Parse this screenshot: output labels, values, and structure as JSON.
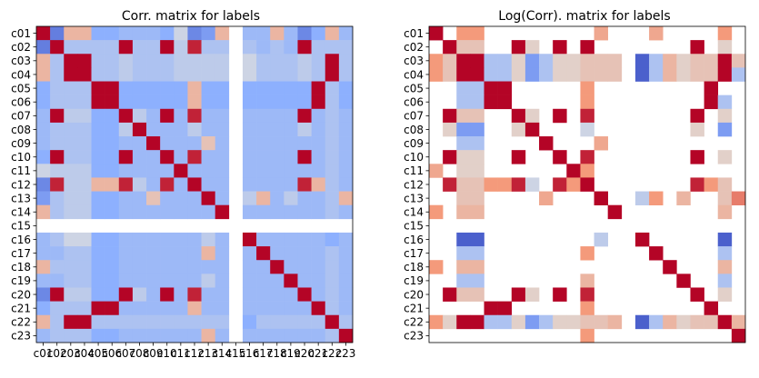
{
  "chart_data": [
    {
      "type": "heatmap",
      "title": "Corr. matrix for labels",
      "labels": [
        "c01",
        "c02",
        "c03",
        "c04",
        "c05",
        "c06",
        "c07",
        "c08",
        "c09",
        "c10",
        "c11",
        "c12",
        "c13",
        "c14",
        "c15",
        "c16",
        "c17",
        "c18",
        "c19",
        "c20",
        "c21",
        "c22",
        "c23"
      ],
      "colormap": "coolwarm",
      "value_range": [
        -1,
        1
      ],
      "blank_rows_cols": [
        "c15"
      ],
      "values": [
        [
          1.0,
          -0.75,
          0.3,
          0.3,
          -0.5,
          -0.5,
          -0.4,
          -0.4,
          -0.4,
          -0.5,
          -0.1,
          -0.7,
          -0.6,
          0.3,
          null,
          -0.4,
          -0.4,
          0.3,
          -0.4,
          -0.7,
          -0.5,
          0.3,
          -0.4
        ],
        [
          -0.75,
          1.0,
          -0.3,
          -0.3,
          -0.3,
          -0.3,
          1.0,
          -0.3,
          -0.3,
          1.0,
          -0.2,
          0.9,
          -0.3,
          -0.3,
          null,
          -0.3,
          -0.4,
          -0.3,
          -0.4,
          1.0,
          -0.3,
          -0.3,
          -0.3
        ],
        [
          0.3,
          -0.3,
          1.0,
          1.0,
          -0.3,
          -0.3,
          -0.2,
          -0.3,
          -0.3,
          -0.3,
          -0.2,
          -0.2,
          -0.2,
          -0.2,
          null,
          -0.1,
          -0.3,
          -0.3,
          -0.3,
          -0.2,
          -0.3,
          1.0,
          -0.3
        ],
        [
          0.3,
          -0.3,
          1.0,
          1.0,
          -0.3,
          -0.3,
          -0.2,
          -0.3,
          -0.3,
          -0.3,
          -0.2,
          -0.2,
          -0.2,
          -0.2,
          null,
          -0.1,
          -0.3,
          -0.3,
          -0.3,
          -0.2,
          -0.3,
          1.0,
          -0.3
        ],
        [
          -0.5,
          -0.3,
          -0.3,
          -0.3,
          1.0,
          1.0,
          -0.5,
          -0.5,
          -0.5,
          -0.5,
          -0.5,
          0.3,
          -0.5,
          -0.5,
          null,
          -0.5,
          -0.5,
          -0.5,
          -0.5,
          -0.5,
          1.0,
          -0.3,
          -0.5
        ],
        [
          -0.5,
          -0.3,
          -0.3,
          -0.3,
          1.0,
          1.0,
          -0.5,
          -0.5,
          -0.5,
          -0.5,
          -0.5,
          0.3,
          -0.5,
          -0.5,
          null,
          -0.5,
          -0.5,
          -0.5,
          -0.5,
          -0.5,
          1.0,
          -0.3,
          -0.5
        ],
        [
          -0.4,
          1.0,
          -0.2,
          -0.2,
          -0.5,
          -0.5,
          1.0,
          -0.2,
          -0.4,
          1.0,
          -0.4,
          0.9,
          -0.4,
          -0.4,
          null,
          -0.4,
          -0.4,
          -0.4,
          -0.4,
          1.0,
          -0.4,
          -0.3,
          -0.4
        ],
        [
          -0.4,
          -0.3,
          -0.3,
          -0.3,
          -0.5,
          -0.5,
          -0.2,
          1.0,
          -0.4,
          -0.4,
          -0.4,
          -0.2,
          -0.4,
          -0.4,
          null,
          -0.4,
          -0.4,
          -0.4,
          -0.4,
          -0.2,
          -0.4,
          -0.3,
          -0.4
        ],
        [
          -0.4,
          -0.3,
          -0.3,
          -0.3,
          -0.5,
          -0.5,
          -0.4,
          -0.4,
          1.0,
          -0.4,
          -0.4,
          -0.4,
          0.2,
          -0.4,
          null,
          -0.4,
          -0.4,
          -0.4,
          -0.4,
          -0.4,
          -0.4,
          -0.3,
          -0.4
        ],
        [
          -0.5,
          1.0,
          -0.3,
          -0.3,
          -0.5,
          -0.5,
          1.0,
          -0.4,
          -0.4,
          1.0,
          -0.4,
          0.9,
          -0.4,
          -0.4,
          null,
          -0.4,
          -0.4,
          -0.4,
          -0.4,
          1.0,
          -0.4,
          -0.3,
          -0.4
        ],
        [
          -0.1,
          -0.2,
          -0.2,
          -0.2,
          -0.5,
          -0.5,
          -0.4,
          -0.4,
          -0.4,
          -0.4,
          1.0,
          -0.4,
          -0.4,
          -0.4,
          null,
          -0.4,
          -0.4,
          -0.4,
          -0.4,
          -0.4,
          -0.4,
          -0.3,
          -0.4
        ],
        [
          -0.7,
          0.9,
          -0.2,
          -0.2,
          0.3,
          0.3,
          0.9,
          -0.2,
          -0.4,
          0.9,
          -0.4,
          1.0,
          -0.4,
          -0.4,
          null,
          -0.4,
          -0.4,
          -0.4,
          -0.4,
          0.9,
          0.3,
          -0.3,
          -0.4
        ],
        [
          -0.6,
          -0.3,
          -0.2,
          -0.2,
          -0.5,
          -0.5,
          -0.4,
          -0.4,
          0.2,
          -0.4,
          -0.4,
          -0.4,
          1.0,
          -0.4,
          null,
          -0.2,
          0.3,
          -0.4,
          -0.2,
          -0.4,
          -0.4,
          -0.3,
          0.3
        ],
        [
          0.3,
          -0.3,
          -0.2,
          -0.2,
          -0.5,
          -0.5,
          -0.4,
          -0.4,
          -0.4,
          -0.4,
          -0.4,
          -0.4,
          -0.4,
          1.0,
          null,
          -0.4,
          -0.4,
          -0.4,
          -0.4,
          -0.4,
          -0.4,
          -0.3,
          -0.4
        ],
        [
          null,
          null,
          null,
          null,
          null,
          null,
          null,
          null,
          null,
          null,
          null,
          null,
          null,
          null,
          null,
          null,
          null,
          null,
          null,
          null,
          null,
          null,
          null
        ],
        [
          -0.4,
          -0.3,
          -0.1,
          -0.1,
          -0.5,
          -0.5,
          -0.4,
          -0.4,
          -0.4,
          -0.4,
          -0.4,
          -0.4,
          -0.2,
          -0.4,
          null,
          1.0,
          -0.4,
          -0.4,
          -0.4,
          -0.4,
          -0.4,
          -0.5,
          -0.4
        ],
        [
          -0.4,
          -0.4,
          -0.3,
          -0.3,
          -0.5,
          -0.5,
          -0.4,
          -0.4,
          -0.4,
          -0.4,
          -0.4,
          -0.4,
          0.3,
          -0.4,
          null,
          -0.4,
          1.0,
          -0.4,
          -0.4,
          -0.4,
          -0.4,
          -0.3,
          -0.4
        ],
        [
          0.3,
          -0.3,
          -0.3,
          -0.3,
          -0.5,
          -0.5,
          -0.4,
          -0.4,
          -0.4,
          -0.4,
          -0.4,
          -0.4,
          -0.4,
          -0.4,
          null,
          -0.4,
          -0.4,
          1.0,
          -0.4,
          -0.4,
          -0.4,
          -0.3,
          -0.4
        ],
        [
          -0.4,
          -0.4,
          -0.3,
          -0.3,
          -0.5,
          -0.5,
          -0.4,
          -0.4,
          -0.4,
          -0.4,
          -0.4,
          -0.4,
          -0.2,
          -0.4,
          null,
          -0.4,
          -0.4,
          -0.4,
          1.0,
          -0.4,
          -0.4,
          -0.3,
          -0.4
        ],
        [
          -0.7,
          1.0,
          -0.2,
          -0.2,
          -0.5,
          -0.5,
          1.0,
          -0.2,
          -0.4,
          1.0,
          -0.4,
          0.9,
          -0.4,
          -0.4,
          null,
          -0.4,
          -0.4,
          -0.4,
          -0.4,
          1.0,
          -0.4,
          -0.3,
          -0.4
        ],
        [
          -0.5,
          -0.3,
          -0.3,
          -0.3,
          1.0,
          1.0,
          -0.4,
          -0.4,
          -0.4,
          -0.4,
          -0.4,
          0.3,
          -0.4,
          -0.4,
          null,
          -0.4,
          -0.4,
          -0.4,
          -0.4,
          -0.4,
          1.0,
          -0.3,
          -0.4
        ],
        [
          0.3,
          -0.3,
          1.0,
          1.0,
          -0.3,
          -0.3,
          -0.3,
          -0.3,
          -0.3,
          -0.3,
          -0.3,
          -0.3,
          -0.3,
          -0.3,
          null,
          -0.5,
          -0.3,
          -0.3,
          -0.3,
          -0.3,
          -0.3,
          1.0,
          -0.3
        ],
        [
          -0.4,
          -0.3,
          -0.3,
          -0.3,
          -0.5,
          -0.5,
          -0.4,
          -0.4,
          -0.4,
          -0.4,
          -0.4,
          -0.4,
          0.3,
          -0.4,
          null,
          -0.4,
          -0.4,
          -0.4,
          -0.4,
          -0.4,
          -0.4,
          -0.3,
          1.0
        ]
      ]
    },
    {
      "type": "heatmap",
      "title": "Log(Corr). matrix for labels",
      "labels": [
        "c01",
        "c02",
        "c03",
        "c04",
        "c05",
        "c06",
        "c07",
        "c08",
        "c09",
        "c10",
        "c11",
        "c12",
        "c13",
        "c14",
        "c15",
        "c16",
        "c17",
        "c18",
        "c19",
        "c20",
        "c21",
        "c22",
        "c23"
      ],
      "colormap": "coolwarm",
      "value_range": [
        -1,
        1
      ],
      "blank_rows_cols": [
        "c15"
      ],
      "values": [
        [
          1.0,
          null,
          0.5,
          0.5,
          null,
          null,
          null,
          null,
          null,
          null,
          null,
          null,
          0.4,
          null,
          null,
          null,
          0.4,
          null,
          null,
          null,
          null,
          0.5,
          null
        ],
        [
          null,
          1.0,
          0.2,
          0.2,
          null,
          null,
          1.0,
          0.1,
          null,
          1.0,
          null,
          1.0,
          null,
          null,
          null,
          null,
          null,
          null,
          null,
          1.0,
          null,
          0.1,
          null
        ],
        [
          0.5,
          0.2,
          1.0,
          1.0,
          -0.3,
          -0.3,
          0.1,
          -0.6,
          -0.3,
          0.1,
          0.1,
          0.2,
          0.2,
          0.2,
          null,
          -0.9,
          -0.3,
          0.3,
          0.1,
          0.2,
          0.2,
          1.0,
          0.2
        ],
        [
          0.5,
          0.2,
          1.0,
          1.0,
          -0.3,
          -0.3,
          0.1,
          -0.6,
          -0.3,
          0.1,
          0.1,
          0.2,
          0.2,
          0.2,
          null,
          -0.9,
          -0.3,
          0.3,
          0.1,
          0.2,
          0.2,
          1.0,
          -0.3
        ],
        [
          null,
          null,
          -0.3,
          -0.3,
          1.0,
          1.0,
          null,
          null,
          null,
          null,
          null,
          0.5,
          null,
          null,
          null,
          null,
          null,
          null,
          null,
          null,
          1.0,
          null,
          null
        ],
        [
          null,
          null,
          -0.3,
          -0.3,
          1.0,
          1.0,
          null,
          null,
          null,
          null,
          null,
          0.5,
          null,
          null,
          null,
          null,
          null,
          null,
          null,
          null,
          1.0,
          -0.3,
          null
        ],
        [
          null,
          1.0,
          0.2,
          0.2,
          null,
          null,
          1.0,
          0.1,
          null,
          1.0,
          null,
          0.9,
          null,
          null,
          null,
          null,
          null,
          null,
          null,
          1.0,
          null,
          0.1,
          null
        ],
        [
          null,
          0.1,
          -0.6,
          -0.6,
          null,
          null,
          0.1,
          1.0,
          null,
          null,
          null,
          -0.1,
          null,
          null,
          null,
          null,
          null,
          null,
          null,
          0.1,
          null,
          -0.6,
          null
        ],
        [
          null,
          null,
          -0.3,
          -0.3,
          null,
          null,
          null,
          null,
          1.0,
          null,
          null,
          null,
          0.4,
          null,
          null,
          null,
          null,
          null,
          null,
          null,
          null,
          null,
          null
        ],
        [
          null,
          1.0,
          0.1,
          0.1,
          null,
          null,
          1.0,
          null,
          null,
          1.0,
          null,
          0.9,
          null,
          null,
          null,
          null,
          null,
          null,
          null,
          1.0,
          null,
          0.1,
          null
        ],
        [
          0.4,
          null,
          0.1,
          0.1,
          null,
          null,
          null,
          null,
          null,
          null,
          1.0,
          0.5,
          null,
          null,
          null,
          null,
          null,
          null,
          null,
          null,
          null,
          null,
          null
        ],
        [
          null,
          0.9,
          0.2,
          0.2,
          0.5,
          0.5,
          0.9,
          -0.1,
          null,
          0.9,
          0.5,
          1.0,
          null,
          null,
          null,
          null,
          null,
          null,
          null,
          0.9,
          0.5,
          0.2,
          null
        ],
        [
          null,
          null,
          0.2,
          0.2,
          null,
          null,
          null,
          null,
          0.4,
          null,
          null,
          null,
          1.0,
          null,
          null,
          -0.2,
          0.5,
          null,
          0.3,
          null,
          null,
          0.2,
          0.6
        ],
        [
          0.5,
          null,
          0.3,
          0.3,
          null,
          null,
          null,
          null,
          null,
          null,
          null,
          null,
          null,
          1.0,
          null,
          null,
          null,
          null,
          null,
          null,
          null,
          0.3,
          null
        ],
        [
          null,
          null,
          null,
          null,
          null,
          null,
          null,
          null,
          null,
          null,
          null,
          null,
          null,
          null,
          null,
          null,
          null,
          null,
          null,
          null,
          null,
          null,
          null
        ],
        [
          null,
          null,
          -0.9,
          -0.9,
          null,
          null,
          null,
          null,
          null,
          null,
          null,
          null,
          -0.2,
          null,
          null,
          1.0,
          null,
          null,
          null,
          null,
          null,
          -0.9,
          null
        ],
        [
          null,
          null,
          -0.3,
          -0.3,
          null,
          null,
          null,
          null,
          null,
          null,
          null,
          0.5,
          null,
          null,
          null,
          null,
          1.0,
          null,
          null,
          null,
          null,
          -0.3,
          null
        ],
        [
          0.5,
          null,
          0.3,
          0.3,
          null,
          null,
          null,
          null,
          null,
          null,
          null,
          null,
          null,
          null,
          null,
          null,
          null,
          1.0,
          null,
          null,
          null,
          0.3,
          null
        ],
        [
          null,
          null,
          -0.3,
          -0.3,
          null,
          null,
          null,
          null,
          null,
          null,
          null,
          0.3,
          null,
          null,
          null,
          null,
          null,
          null,
          1.0,
          null,
          null,
          -0.3,
          null
        ],
        [
          null,
          1.0,
          0.2,
          0.2,
          null,
          null,
          1.0,
          0.1,
          null,
          1.0,
          null,
          0.9,
          null,
          null,
          null,
          null,
          null,
          null,
          null,
          1.0,
          null,
          0.1,
          null
        ],
        [
          null,
          null,
          null,
          null,
          1.0,
          1.0,
          null,
          null,
          null,
          null,
          null,
          0.5,
          null,
          null,
          null,
          null,
          null,
          null,
          null,
          null,
          1.0,
          null,
          null
        ],
        [
          0.5,
          0.1,
          1.0,
          1.0,
          -0.3,
          -0.3,
          0.1,
          -0.6,
          -0.3,
          0.1,
          0.1,
          0.2,
          0.2,
          0.3,
          null,
          -0.9,
          -0.3,
          0.3,
          0.1,
          0.2,
          0.2,
          1.0,
          0.3
        ],
        [
          null,
          null,
          null,
          null,
          null,
          null,
          null,
          null,
          null,
          null,
          null,
          0.5,
          null,
          null,
          null,
          null,
          null,
          null,
          null,
          null,
          null,
          null,
          1.0
        ]
      ]
    }
  ]
}
